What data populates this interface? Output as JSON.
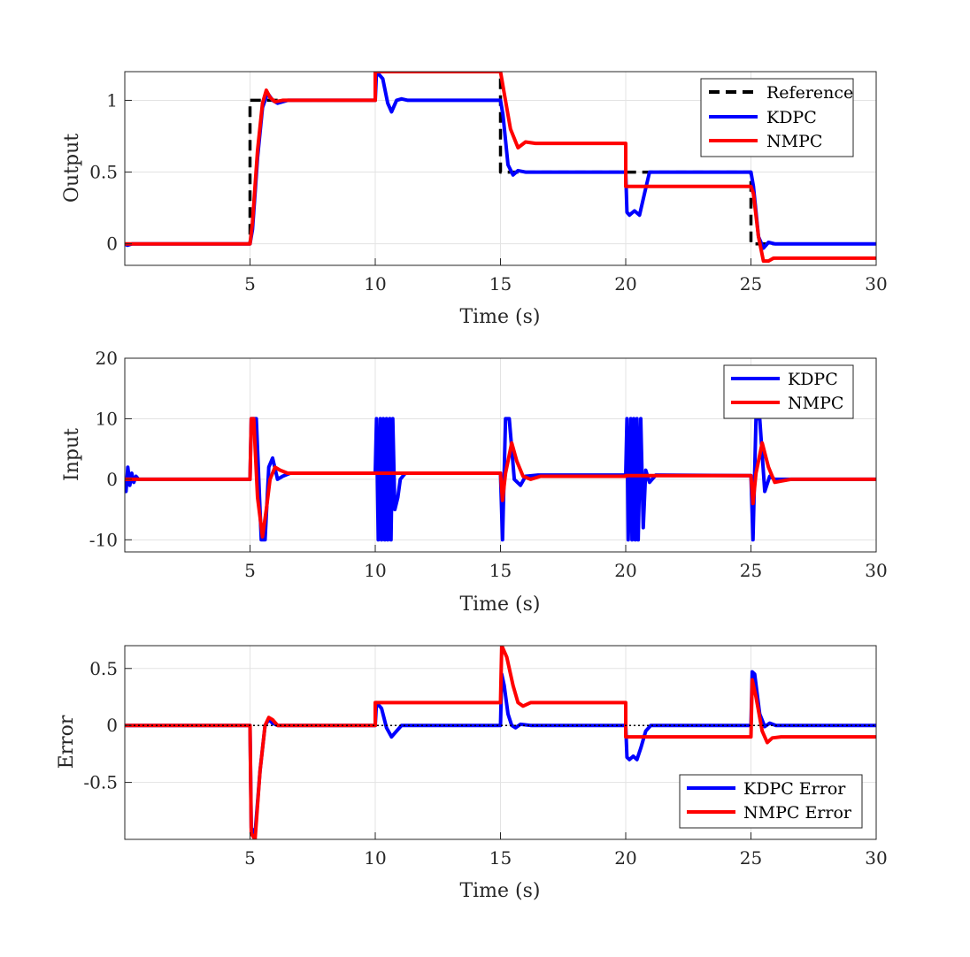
{
  "chart_data": [
    {
      "type": "line",
      "name": "output",
      "xlabel": "Time (s)",
      "ylabel": "Output",
      "xlim": [
        0,
        30
      ],
      "ylim": [
        -0.15,
        1.2
      ],
      "xticks": [
        5,
        10,
        15,
        20,
        25,
        30
      ],
      "yticks": [
        0,
        0.5,
        1
      ],
      "ytick_labels": [
        "0",
        "0.5",
        "1"
      ],
      "grid": true,
      "legend_position": "top-right",
      "series": [
        {
          "name": "Reference",
          "color": "#000000",
          "style": "dashed",
          "x": [
            0,
            5,
            5,
            10,
            10,
            15,
            15,
            20,
            20,
            25,
            25,
            30
          ],
          "y": [
            0,
            0,
            1,
            1,
            1.2,
            1.2,
            0.5,
            0.5,
            0.5,
            0.5,
            0,
            0
          ]
        },
        {
          "name": "KDPC",
          "color": "#0000ff",
          "style": "solid",
          "x": [
            0,
            0.1,
            0.3,
            5.0,
            5.1,
            5.3,
            5.5,
            5.7,
            5.9,
            6.1,
            6.5,
            10.0,
            10.05,
            10.3,
            10.5,
            10.65,
            10.85,
            11.05,
            11.3,
            12,
            15.0,
            15.1,
            15.3,
            15.5,
            15.7,
            16.0,
            20.0,
            20.05,
            20.15,
            20.35,
            20.55,
            20.75,
            20.95,
            21.2,
            25.0,
            25.1,
            25.3,
            25.5,
            25.7,
            25.95,
            26.3,
            30
          ],
          "y": [
            0,
            -0.01,
            0,
            0,
            0.1,
            0.6,
            0.95,
            1.05,
            1.0,
            0.98,
            1.0,
            1.0,
            1.2,
            1.15,
            0.98,
            0.92,
            1.0,
            1.01,
            1.0,
            1.0,
            1.0,
            0.9,
            0.55,
            0.48,
            0.51,
            0.5,
            0.5,
            0.22,
            0.2,
            0.23,
            0.2,
            0.35,
            0.5,
            0.5,
            0.5,
            0.4,
            0.05,
            -0.03,
            0.01,
            0.0,
            0.0,
            0.0
          ]
        },
        {
          "name": "NMPC",
          "color": "#ff0000",
          "style": "solid",
          "x": [
            0,
            5.0,
            5.1,
            5.3,
            5.5,
            5.65,
            5.8,
            6.0,
            6.3,
            10.0,
            10.0,
            15.0,
            15.15,
            15.4,
            15.7,
            16.0,
            16.4,
            20.0,
            20.0,
            25.0,
            25.1,
            25.3,
            25.5,
            25.7,
            25.9,
            26.3,
            30
          ],
          "y": [
            0,
            0,
            0.15,
            0.65,
            0.98,
            1.07,
            1.02,
            0.99,
            1.0,
            1.0,
            1.2,
            1.2,
            1.05,
            0.8,
            0.67,
            0.71,
            0.7,
            0.7,
            0.4,
            0.4,
            0.35,
            0.05,
            -0.12,
            -0.12,
            -0.1,
            -0.1,
            -0.1
          ]
        }
      ]
    },
    {
      "type": "line",
      "name": "input",
      "xlabel": "Time (s)",
      "ylabel": "Input",
      "xlim": [
        0,
        30
      ],
      "ylim": [
        -12,
        20
      ],
      "xticks": [
        5,
        10,
        15,
        20,
        25,
        30
      ],
      "yticks": [
        -10,
        0,
        10,
        20
      ],
      "ytick_labels": [
        "-10",
        "0",
        "10",
        "20"
      ],
      "grid": true,
      "legend_position": "top-right",
      "series": [
        {
          "name": "KDPC",
          "color": "#0000ff",
          "style": "solid",
          "x": [
            0,
            0.05,
            0.12,
            0.2,
            0.28,
            0.36,
            0.45,
            0.55,
            0.8,
            5.0,
            5.05,
            5.25,
            5.45,
            5.6,
            5.75,
            5.9,
            6.1,
            6.3,
            6.6,
            10.0,
            10.05,
            10.12,
            10.2,
            10.25,
            10.32,
            10.38,
            10.45,
            10.5,
            10.58,
            10.63,
            10.7,
            10.78,
            10.9,
            11.0,
            11.2,
            11.5,
            15.0,
            15.08,
            15.2,
            15.35,
            15.55,
            15.8,
            16.0,
            16.5,
            20.0,
            20.05,
            20.1,
            20.2,
            20.25,
            20.32,
            20.38,
            20.45,
            20.5,
            20.6,
            20.7,
            20.8,
            20.95,
            21.2,
            25.0,
            25.08,
            25.2,
            25.35,
            25.55,
            25.75,
            25.95,
            26.2,
            30
          ],
          "y": [
            -1.5,
            -2,
            2,
            -1,
            1,
            -0.5,
            0.5,
            0,
            0,
            0,
            10,
            10,
            -10,
            -10,
            2,
            3.5,
            0,
            0.5,
            1,
            1,
            10,
            -10,
            10,
            -10,
            10,
            -10,
            10,
            -10,
            10,
            -10,
            10,
            -5,
            -3,
            0,
            1,
            1,
            1,
            -10,
            10,
            10,
            0,
            -1,
            0.5,
            0.7,
            0.7,
            10,
            -10,
            10,
            -10,
            10,
            -10,
            10,
            -10,
            10,
            -8,
            1.5,
            -0.5,
            0.7,
            0.6,
            -10,
            10,
            10,
            -2,
            0.5,
            0,
            0,
            0
          ]
        },
        {
          "name": "NMPC",
          "color": "#ff0000",
          "style": "solid",
          "x": [
            0,
            5.0,
            5.05,
            5.15,
            5.3,
            5.5,
            5.65,
            5.8,
            6.0,
            6.2,
            6.5,
            10.0,
            10.05,
            15.0,
            15.08,
            15.2,
            15.45,
            15.65,
            15.9,
            16.2,
            16.6,
            20.0,
            20.0,
            25.0,
            25.08,
            25.2,
            25.45,
            25.7,
            25.95,
            26.2,
            26.6,
            30
          ],
          "y": [
            0,
            0,
            10,
            10,
            -3,
            -9.5,
            -5,
            0,
            2,
            1.5,
            1,
            1,
            1,
            1,
            -3.5,
            1,
            6,
            3,
            0.5,
            0,
            0.5,
            0.5,
            0.6,
            0.6,
            -4,
            1,
            6,
            2,
            -0.5,
            -0.3,
            0,
            0
          ]
        }
      ]
    },
    {
      "type": "line",
      "name": "error",
      "xlabel": "Time (s)",
      "ylabel": "Error",
      "xlim": [
        0,
        30
      ],
      "ylim": [
        -1.0,
        0.7
      ],
      "xticks": [
        5,
        10,
        15,
        20,
        25,
        30
      ],
      "yticks": [
        -0.5,
        0,
        0.5
      ],
      "ytick_labels": [
        "-0.5",
        "0",
        "0.5"
      ],
      "grid": true,
      "legend_position": "bottom-right",
      "series": [
        {
          "name": "KDPC Error",
          "color": "#0000ff",
          "style": "solid",
          "x": [
            0,
            5.0,
            5.05,
            5.2,
            5.4,
            5.6,
            5.75,
            5.9,
            6.1,
            6.5,
            10.0,
            10.05,
            10.25,
            10.45,
            10.65,
            10.85,
            11.05,
            11.3,
            15.0,
            15.05,
            15.15,
            15.3,
            15.45,
            15.6,
            15.8,
            16.2,
            20.0,
            20.05,
            20.15,
            20.3,
            20.45,
            20.6,
            20.8,
            21.0,
            25.0,
            25.05,
            25.15,
            25.35,
            25.55,
            25.75,
            26.0,
            30
          ],
          "y": [
            0,
            0,
            -0.9,
            -0.95,
            -0.4,
            0.0,
            0.05,
            0.02,
            0.0,
            0.0,
            0.0,
            0.2,
            0.15,
            -0.02,
            -0.1,
            -0.05,
            0.0,
            0.0,
            0.0,
            0.45,
            0.35,
            0.1,
            0.0,
            -0.02,
            0.01,
            0.0,
            0.0,
            -0.28,
            -0.3,
            -0.27,
            -0.3,
            -0.2,
            -0.05,
            0.0,
            0.0,
            0.47,
            0.45,
            0.1,
            -0.01,
            0.02,
            0.0,
            0.0
          ]
        },
        {
          "name": "NMPC Error",
          "color": "#ff0000",
          "style": "solid",
          "x": [
            0,
            5.0,
            5.05,
            5.2,
            5.4,
            5.6,
            5.75,
            5.9,
            6.1,
            6.5,
            10.0,
            10.0,
            15.0,
            15.05,
            15.25,
            15.5,
            15.7,
            15.9,
            16.2,
            16.6,
            20.0,
            20.0,
            25.0,
            25.05,
            25.2,
            25.45,
            25.65,
            25.85,
            26.2,
            30
          ],
          "y": [
            0,
            0,
            -0.95,
            -1.0,
            -0.4,
            0.0,
            0.07,
            0.05,
            0.0,
            0.0,
            0.0,
            0.2,
            0.2,
            0.7,
            0.6,
            0.35,
            0.2,
            0.17,
            0.2,
            0.2,
            0.2,
            -0.1,
            -0.1,
            0.4,
            0.25,
            -0.05,
            -0.15,
            -0.11,
            -0.1,
            -0.1
          ]
        },
        {
          "name": "zero",
          "color": "#000000",
          "style": "dotted",
          "x": [
            0,
            30
          ],
          "y": [
            0,
            0
          ]
        }
      ]
    }
  ]
}
